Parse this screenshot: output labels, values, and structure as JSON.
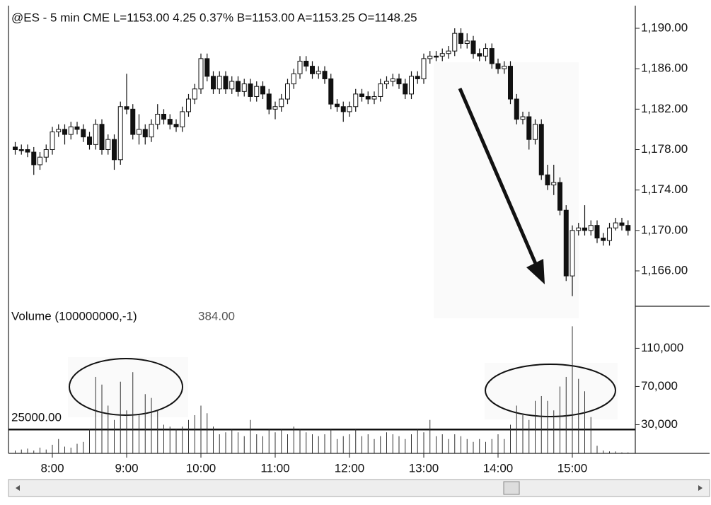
{
  "chart_data": {
    "type": "candlestick",
    "title": "@ES - 5 min  CME  L=1153.00  4.25  0.37%  B=1153.00  A=1153.25  O=1148.25",
    "volume_title": "Volume (100000000,-1)",
    "volume_readout": "384.00",
    "volume_level": {
      "value": 25000,
      "label": "25000.00"
    },
    "categories": [
      null,
      null,
      null,
      null,
      null,
      null,
      "8:00",
      null,
      null,
      null,
      null,
      null,
      null,
      null,
      null,
      null,
      null,
      null,
      "9:00",
      null,
      null,
      null,
      null,
      null,
      null,
      null,
      null,
      null,
      null,
      null,
      "10:00",
      null,
      null,
      null,
      null,
      null,
      null,
      null,
      null,
      null,
      null,
      null,
      "11:00",
      null,
      null,
      null,
      null,
      null,
      null,
      null,
      null,
      null,
      null,
      null,
      "12:00",
      null,
      null,
      null,
      null,
      null,
      null,
      null,
      null,
      null,
      null,
      null,
      "13:00",
      null,
      null,
      null,
      null,
      null,
      null,
      null,
      null,
      null,
      null,
      null,
      "14:00",
      null,
      null,
      null,
      null,
      null,
      null,
      null,
      null,
      null,
      null,
      null,
      "15:00",
      null,
      null,
      null,
      null,
      null,
      null,
      null,
      null,
      null
    ],
    "open": [
      1178.25,
      1178,
      1178,
      1177.75,
      1176.5,
      1177.25,
      1178,
      1179.75,
      1180,
      1179.5,
      1180.25,
      1180,
      1179.25,
      1178.5,
      1180.5,
      1178,
      1179,
      1177,
      1182.25,
      1182,
      1179.5,
      1180,
      1179.25,
      1180.5,
      1181.5,
      1181,
      1180.5,
      1180.25,
      1181.75,
      1183,
      1184,
      1187,
      1185.25,
      1184,
      1185.25,
      1184,
      1184.75,
      1183.75,
      1184.5,
      1183.25,
      1184.25,
      1183.5,
      1182,
      1182.25,
      1183,
      1184.5,
      1185.5,
      1186.75,
      1186.25,
      1185.5,
      1185.75,
      1185,
      1182.5,
      1182.25,
      1181.75,
      1182.25,
      1183.5,
      1183.25,
      1183,
      1183.25,
      1184.5,
      1184.75,
      1185,
      1184.5,
      1183.5,
      1185.25,
      1185,
      1187,
      1187.25,
      1187.25,
      1187.5,
      1187.75,
      1189.5,
      1188.5,
      1188.75,
      1187.5,
      1187.25,
      1188,
      1186.5,
      1186,
      1186.25,
      1183,
      1181,
      1181.25,
      1179,
      1180.5,
      1175.5,
      1174.5,
      1174.75,
      1172,
      1165.5,
      1170,
      1170.25,
      1170,
      1170.5,
      1169.25,
      1169,
      1170.25,
      1170.75,
      1170.5
    ],
    "high": [
      1178.75,
      1178.5,
      1178.5,
      1178.25,
      1177.75,
      1178.5,
      1180.25,
      1180.5,
      1180.5,
      1180.75,
      1180.75,
      1180.5,
      1179.75,
      1181,
      1181,
      1179.5,
      1179.5,
      1182.75,
      1185.5,
      1182.5,
      1181.5,
      1180.5,
      1181,
      1182.5,
      1182,
      1181.5,
      1181,
      1182.25,
      1183.5,
      1184.5,
      1187.5,
      1187.5,
      1185.75,
      1185.75,
      1185.75,
      1185.25,
      1185.25,
      1185,
      1185,
      1184.75,
      1184.75,
      1184,
      1182.75,
      1183.5,
      1185,
      1186,
      1187.25,
      1187.25,
      1186.75,
      1186.25,
      1186.25,
      1185.5,
      1183,
      1182.75,
      1182.75,
      1184,
      1184,
      1183.75,
      1183.75,
      1185,
      1185.25,
      1185.5,
      1185.5,
      1185,
      1185.75,
      1185.75,
      1187.5,
      1187.75,
      1187.75,
      1188,
      1188.25,
      1190,
      1190,
      1189.5,
      1189.25,
      1188,
      1188.5,
      1188.5,
      1187,
      1186.75,
      1186.75,
      1183.5,
      1181.75,
      1181.75,
      1181,
      1181,
      1176.5,
      1176.5,
      1175.25,
      1172.5,
      1170.5,
      1170.75,
      1172.5,
      1171,
      1171,
      1169.75,
      1170.75,
      1171.25,
      1171.25,
      1171
    ],
    "low": [
      1177.5,
      1177.5,
      1177.25,
      1175.5,
      1176,
      1176.75,
      1177.5,
      1179.25,
      1178.5,
      1179,
      1179.5,
      1178.75,
      1178,
      1178,
      1177.5,
      1177.5,
      1176,
      1176.5,
      1181.5,
      1179,
      1178.5,
      1178.5,
      1178.75,
      1180,
      1180.5,
      1180,
      1179.75,
      1179.75,
      1181.25,
      1182.5,
      1183.5,
      1184.75,
      1183.5,
      1183.5,
      1183.5,
      1183.5,
      1183.25,
      1183.25,
      1182.75,
      1182.75,
      1183,
      1181.5,
      1181,
      1181.75,
      1182.5,
      1184,
      1185,
      1185.75,
      1185,
      1185,
      1184.5,
      1182,
      1181.75,
      1180.75,
      1181.25,
      1181.75,
      1182.75,
      1182.5,
      1182.5,
      1182.75,
      1184,
      1184.25,
      1184,
      1183,
      1183,
      1184.5,
      1184.5,
      1186.5,
      1186.75,
      1186.75,
      1187,
      1187.25,
      1188,
      1188,
      1187,
      1186.75,
      1186.75,
      1186,
      1185.5,
      1185.5,
      1182.5,
      1180.5,
      1180.5,
      1178,
      1178.5,
      1175,
      1174,
      1173.5,
      1171.5,
      1165,
      1163.5,
      1169.5,
      1169.5,
      1169.5,
      1168.75,
      1168.5,
      1168.5,
      1170,
      1170,
      1169.5
    ],
    "close": [
      1178,
      1178,
      1177.75,
      1176.5,
      1177.25,
      1178,
      1179.75,
      1180,
      1179.5,
      1180.25,
      1180,
      1179.25,
      1178.5,
      1180.5,
      1178,
      1179,
      1177,
      1182.25,
      1182,
      1179.5,
      1180,
      1179.25,
      1180.5,
      1181.5,
      1181,
      1180.5,
      1180.25,
      1181.75,
      1183,
      1184,
      1187,
      1185.25,
      1184,
      1185.25,
      1184,
      1184.75,
      1183.75,
      1184.5,
      1183.25,
      1184.25,
      1183.5,
      1182,
      1182.25,
      1183,
      1184.5,
      1185.5,
      1186.75,
      1186.25,
      1185.5,
      1185.75,
      1185,
      1182.5,
      1182.25,
      1181.75,
      1182.25,
      1183.5,
      1183.25,
      1183,
      1183.25,
      1184.5,
      1184.75,
      1185,
      1184.5,
      1183.5,
      1185.25,
      1185,
      1187,
      1187.25,
      1187.25,
      1187.5,
      1187.75,
      1189.5,
      1188.5,
      1188.75,
      1187.5,
      1187.25,
      1188,
      1186.5,
      1186,
      1186.25,
      1183,
      1181,
      1181.25,
      1179,
      1180.5,
      1175.5,
      1174.5,
      1174.75,
      1172,
      1165.5,
      1170,
      1170.25,
      1170,
      1170.5,
      1169.25,
      1169,
      1170.25,
      1170.75,
      1170.5,
      1170
    ],
    "volume": [
      3000,
      4000,
      5000,
      3000,
      6000,
      4000,
      9000,
      15000,
      7000,
      6000,
      10000,
      12000,
      25000,
      80000,
      72000,
      50000,
      35000,
      75000,
      45000,
      85000,
      40000,
      62000,
      58000,
      45000,
      30000,
      28000,
      25000,
      28000,
      35000,
      40000,
      50000,
      42000,
      28000,
      20000,
      22000,
      25000,
      22000,
      18000,
      35000,
      20000,
      18000,
      25000,
      22000,
      25000,
      20000,
      28000,
      25000,
      22000,
      20000,
      18000,
      20000,
      25000,
      15000,
      18000,
      20000,
      25000,
      18000,
      20000,
      15000,
      18000,
      22000,
      20000,
      18000,
      15000,
      20000,
      25000,
      22000,
      35000,
      18000,
      20000,
      15000,
      20000,
      18000,
      15000,
      12000,
      15000,
      12000,
      15000,
      20000,
      15000,
      30000,
      50000,
      40000,
      35000,
      55000,
      60000,
      55000,
      45000,
      70000,
      80000,
      133000,
      78000,
      65000,
      38000,
      8000,
      3000,
      2000,
      2000,
      1000,
      1000
    ],
    "color": "#111111",
    "up_color": "#ffffff",
    "ylim": [
      1162.5,
      1192.1
    ],
    "yticks": [
      {
        "value": 1190,
        "label": "1,190.00"
      },
      {
        "value": 1186,
        "label": "1,186.00"
      },
      {
        "value": 1182,
        "label": "1,182.00"
      },
      {
        "value": 1178,
        "label": "1,178.00"
      },
      {
        "value": 1174,
        "label": "1,174.00"
      },
      {
        "value": 1170,
        "label": "1,170.00"
      },
      {
        "value": 1166,
        "label": "1,166.00"
      }
    ],
    "y2lim": [
      0,
      154000
    ],
    "y2ticks": [
      {
        "value": 110000,
        "label": "110,000"
      },
      {
        "value": 70000,
        "label": "70,000"
      },
      {
        "value": 30000,
        "label": "30,000"
      }
    ]
  }
}
